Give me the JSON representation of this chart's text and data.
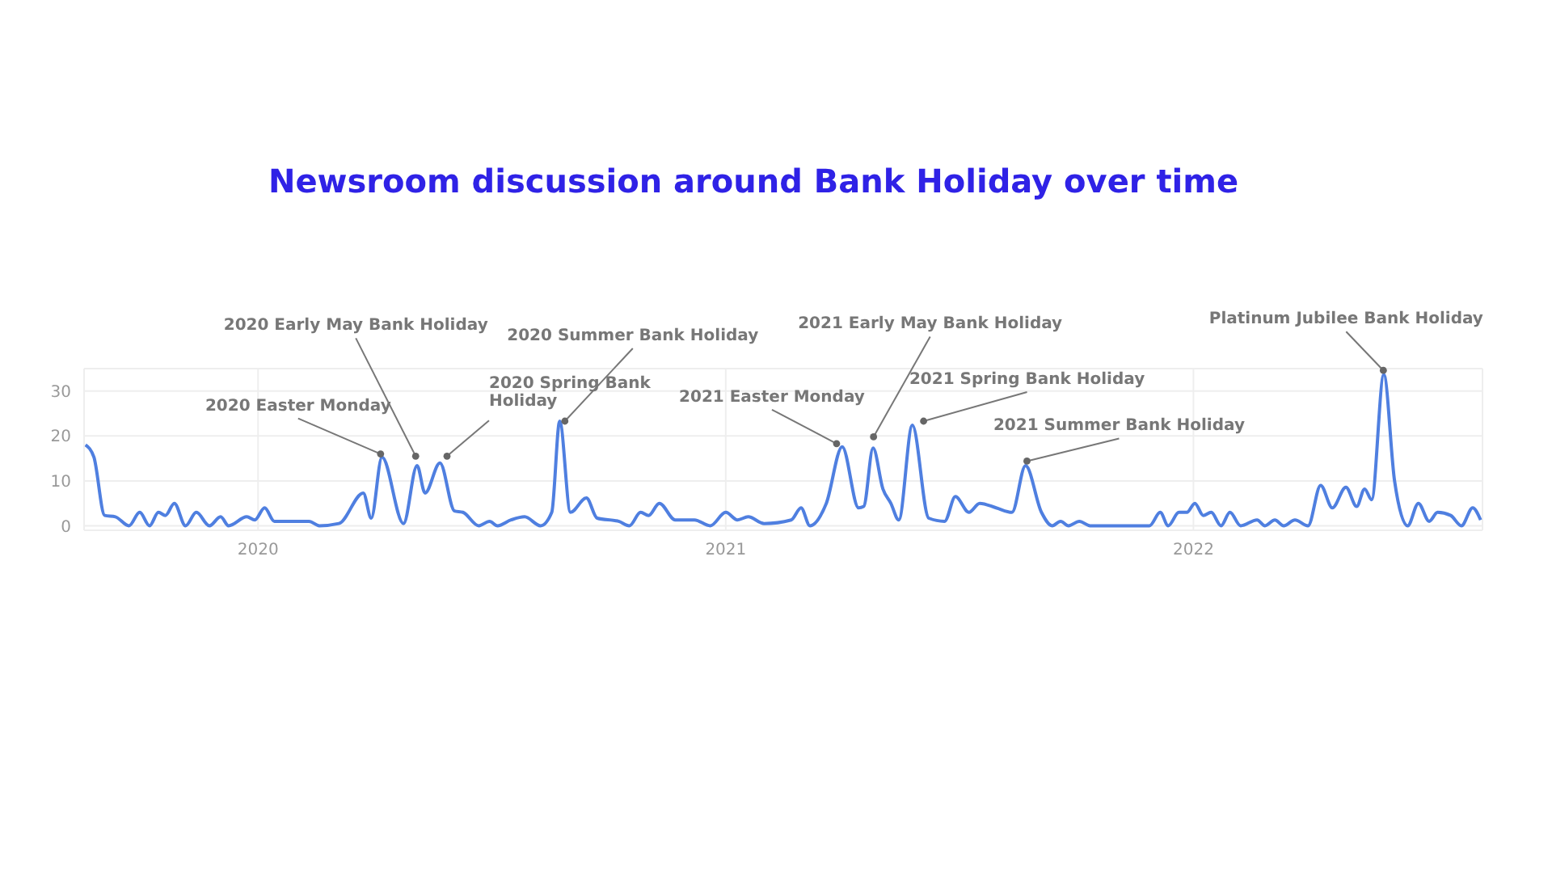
{
  "chart_data": {
    "type": "line",
    "title": "Newsroom discussion around Bank Holiday over time",
    "color": "#4f7fe0",
    "marker": "none",
    "line_style": "solid",
    "grid": true,
    "x": [
      2019.631,
      2019.649,
      2019.672,
      2019.695,
      2019.724,
      2019.747,
      2019.768,
      2019.787,
      2019.802,
      2019.821,
      2019.845,
      2019.868,
      2019.896,
      2019.92,
      2019.937,
      2019.976,
      2019.993,
      2020.014,
      2020.035,
      2020.109,
      2020.131,
      2020.173,
      2020.225,
      2020.242,
      2020.265,
      2020.311,
      2020.34,
      2020.357,
      2020.389,
      2020.42,
      2020.438,
      2020.472,
      2020.495,
      2020.512,
      2020.541,
      2020.57,
      2020.604,
      2020.628,
      2020.645,
      2020.668,
      2020.702,
      2020.725,
      2020.771,
      2020.794,
      2020.818,
      2020.835,
      2020.858,
      2020.892,
      2020.933,
      2020.967,
      2021.0,
      2021.025,
      2021.048,
      2021.082,
      2021.14,
      2021.161,
      2021.18,
      2021.215,
      2021.249,
      2021.284,
      2021.295,
      2021.315,
      2021.336,
      2021.353,
      2021.37,
      2021.399,
      2021.434,
      2021.468,
      2021.491,
      2021.52,
      2021.543,
      2021.578,
      2021.612,
      2021.641,
      2021.675,
      2021.698,
      2021.716,
      2021.733,
      2021.756,
      2021.779,
      2021.906,
      2021.929,
      2021.946,
      2021.969,
      2021.986,
      2022.003,
      2022.021,
      2022.038,
      2022.059,
      2022.078,
      2022.101,
      2022.136,
      2022.153,
      2022.174,
      2022.193,
      2022.217,
      2022.245,
      2022.272,
      2022.297,
      2022.326,
      2022.349,
      2022.366,
      2022.381,
      2022.407,
      2022.43,
      2022.458,
      2022.481,
      2022.504,
      2022.522,
      2022.55,
      2022.573,
      2022.597,
      2022.614
    ],
    "values": [
      18,
      15.3,
      2.3,
      2,
      0,
      3,
      0,
      3,
      2.3,
      5,
      0,
      3,
      0,
      2,
      0,
      2,
      1.3,
      4,
      1,
      1,
      0,
      0.5,
      7.3,
      1.7,
      15.3,
      0.5,
      13.4,
      7.3,
      14,
      3.3,
      3,
      0,
      1,
      0,
      1.3,
      2,
      0,
      3,
      23.3,
      3,
      6.2,
      1.7,
      1,
      0,
      3,
      2.3,
      5,
      1.3,
      1.3,
      0,
      3,
      1.3,
      2,
      0.5,
      1.3,
      4,
      0,
      5,
      17.6,
      4,
      4.3,
      17.3,
      8.2,
      5,
      1.3,
      22.4,
      1.7,
      1,
      6.5,
      3,
      5,
      4,
      3,
      13.4,
      3,
      0,
      1,
      0,
      1,
      0,
      0,
      3,
      0,
      3,
      3,
      5,
      2.3,
      3,
      0,
      3,
      0,
      1.3,
      0,
      1.3,
      0,
      1.3,
      0,
      9,
      4,
      8.6,
      4.3,
      8.2,
      5.8,
      33.7,
      10,
      0,
      5,
      1,
      3,
      2.3,
      0,
      4,
      1.3
    ],
    "xlim": [
      2019.628,
      2022.618
    ],
    "xticks": [
      2020,
      2021,
      2022
    ],
    "ylim": [
      -1,
      35
    ],
    "yticks": [
      0,
      10,
      20,
      30
    ],
    "annotations": [
      {
        "text": "2020 Easter Monday",
        "x": 2020.262,
        "y": 16
      },
      {
        "text": "2020 Early May Bank Holiday",
        "x": 2020.337,
        "y": 15.5
      },
      {
        "text": "2020 Spring Bank Holiday",
        "x": 2020.404,
        "y": 15.5
      },
      {
        "text": "2020 Summer Bank Holiday",
        "x": 2020.656,
        "y": 23.3
      },
      {
        "text": "2021 Easter Monday",
        "x": 2021.237,
        "y": 18.3
      },
      {
        "text": "2021 Early May Bank Holiday",
        "x": 2021.316,
        "y": 19.8
      },
      {
        "text": "2021 Spring Bank Holiday",
        "x": 2021.423,
        "y": 23.3
      },
      {
        "text": "2021 Summer Bank Holiday",
        "x": 2021.644,
        "y": 14.4
      },
      {
        "text": "Platinum Jubilee Bank Holiday",
        "x": 2022.406,
        "y": 34.6
      }
    ]
  }
}
